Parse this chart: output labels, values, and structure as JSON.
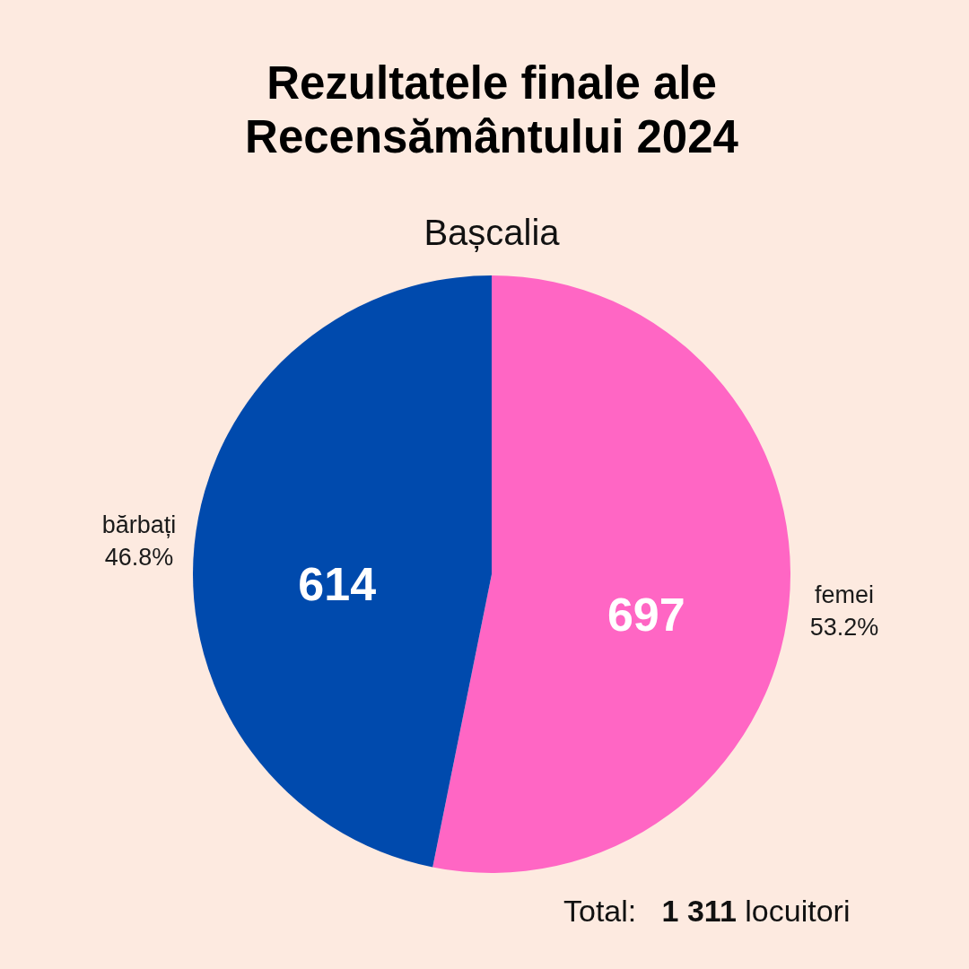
{
  "chart_data": {
    "type": "pie",
    "title": "Rezultatele finale ale\nRecensământului 2024",
    "subtitle": "Bașcalia",
    "categories": [
      "femei",
      "bărbați"
    ],
    "values": [
      697,
      614
    ],
    "colors": [
      "#ff66c4",
      "#004aad"
    ],
    "data_labels": true,
    "annotations": [
      {
        "text": "53.2%",
        "x": "femei"
      },
      {
        "text": "46.8%",
        "x": "bărbați"
      },
      "Total:   1 311 locuitori"
    ]
  }
}
